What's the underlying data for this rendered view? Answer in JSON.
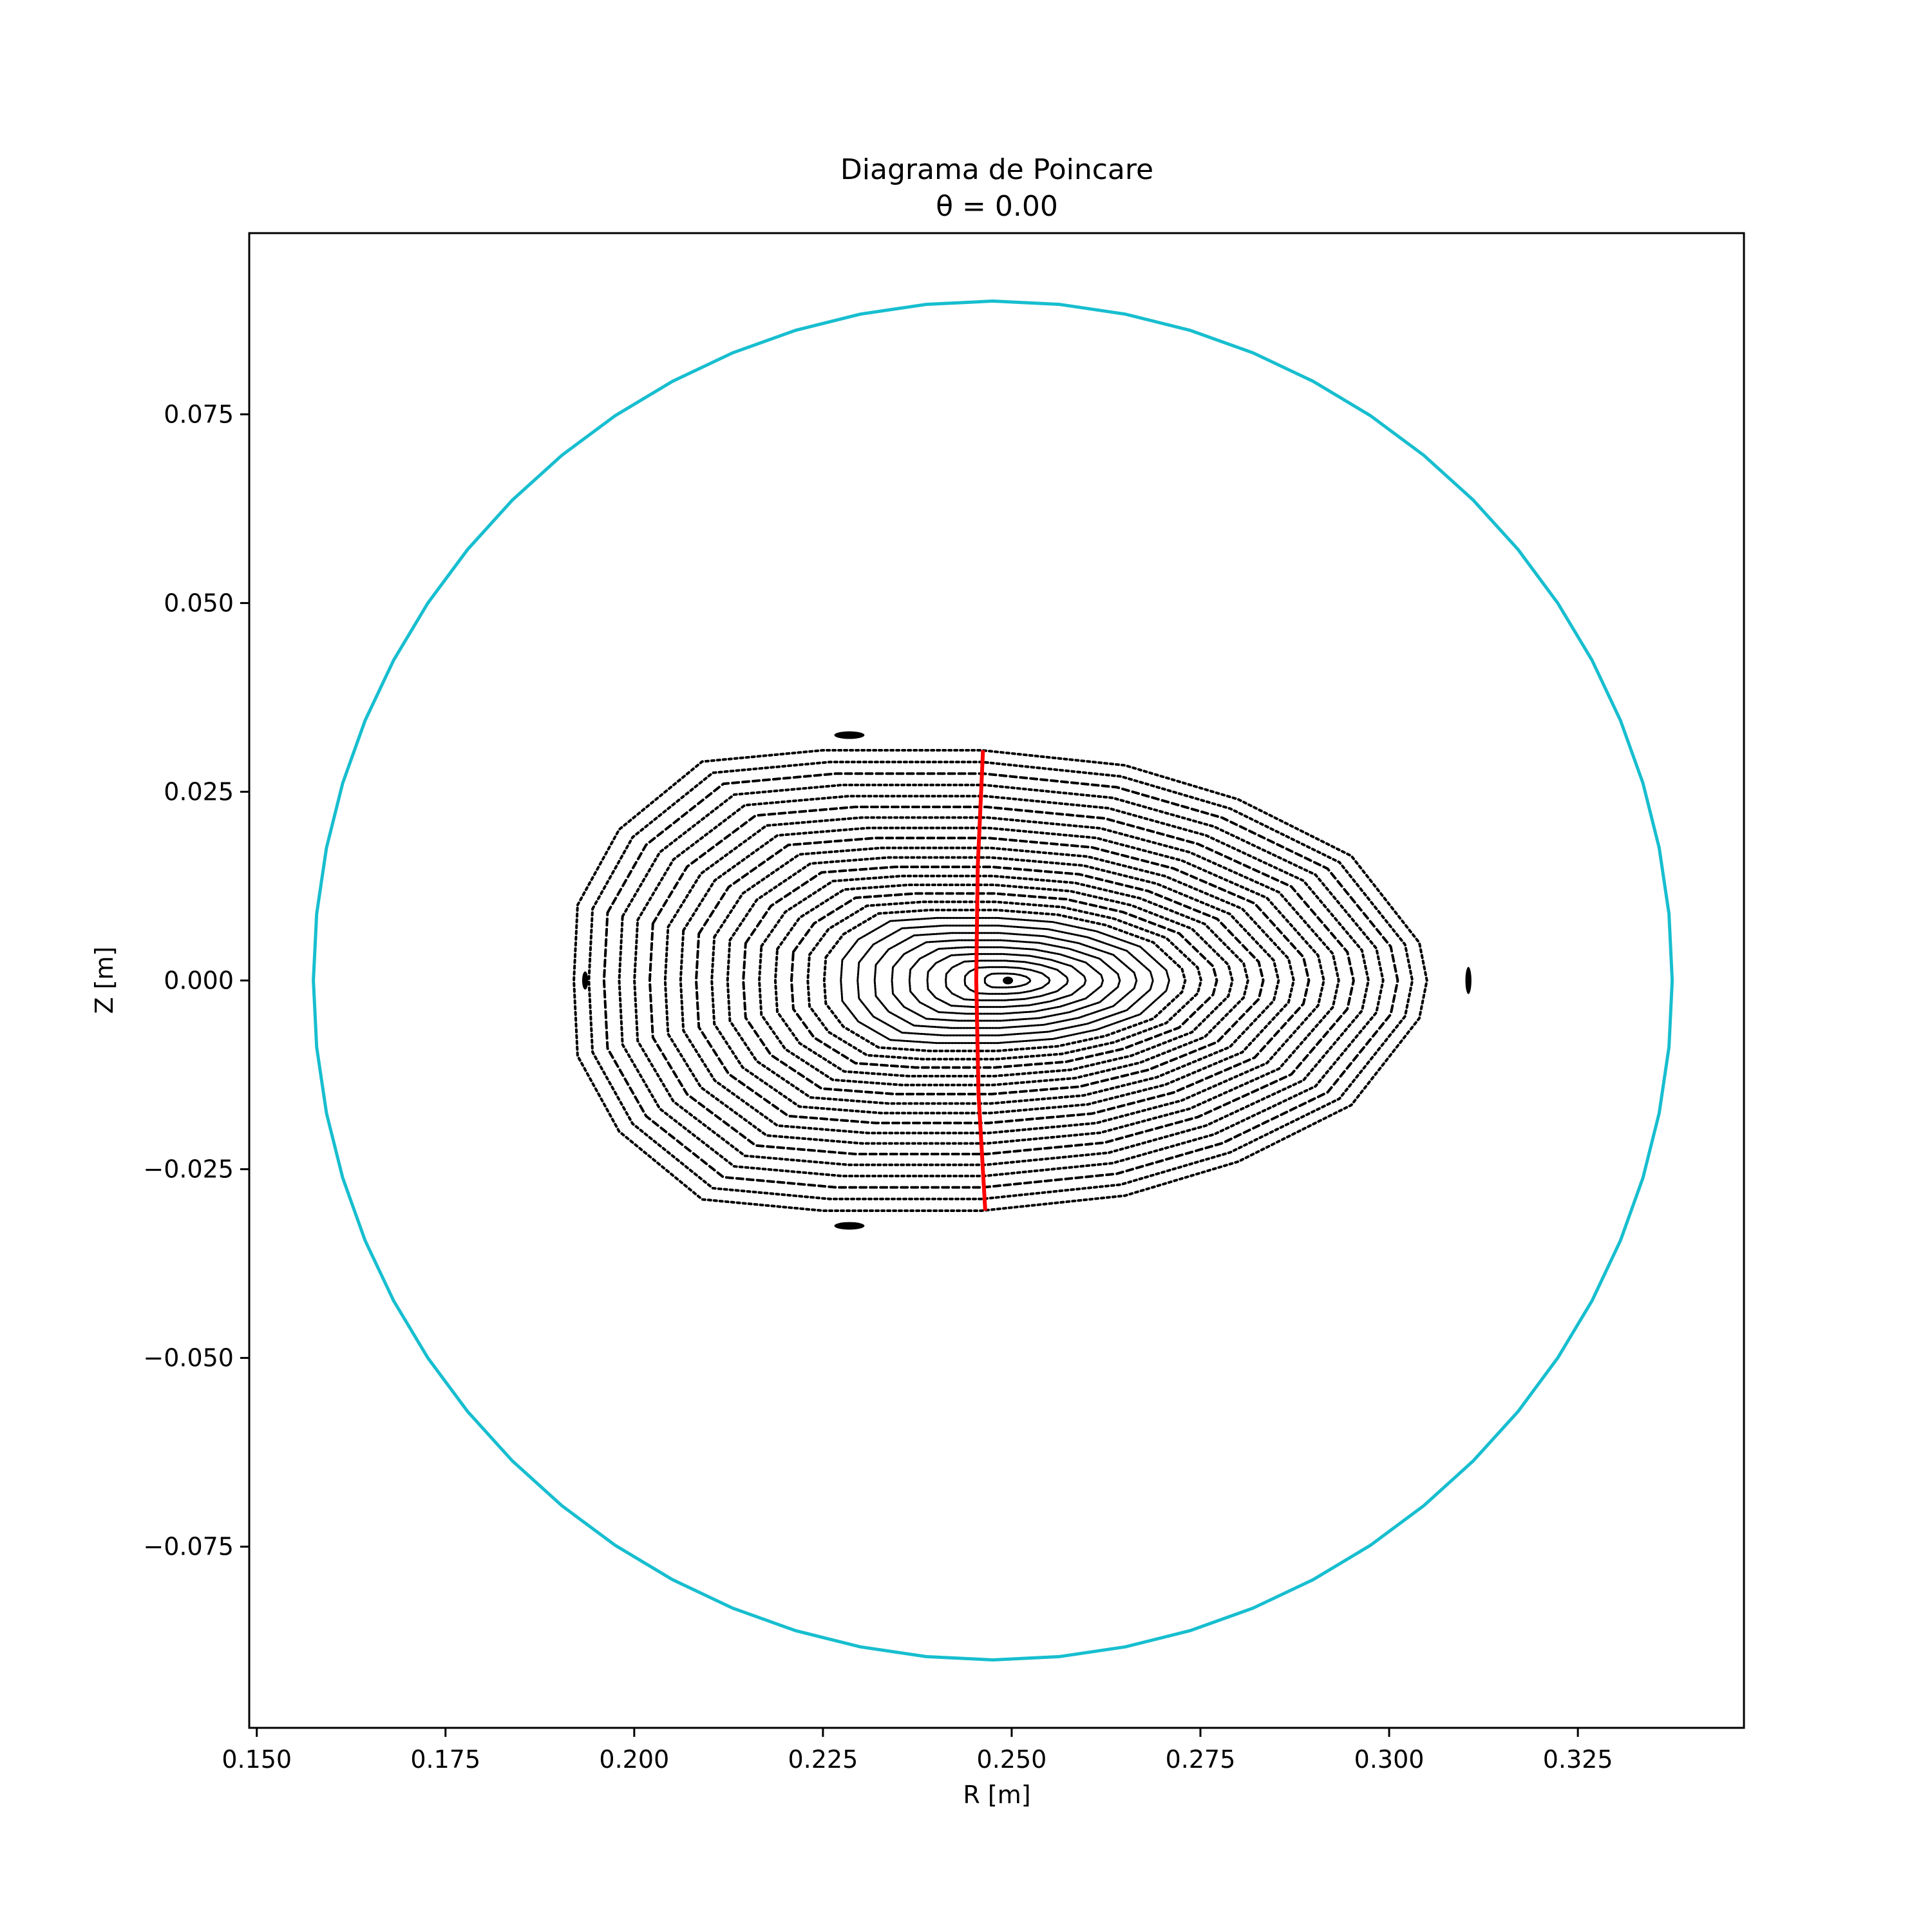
{
  "chart_data": {
    "type": "scatter",
    "title": "Diagrama de Poincare",
    "subtitle": "θ = 0.00",
    "xlabel": "R [m]",
    "ylabel": "Z [m]",
    "xlim": [
      0.149,
      0.347
    ],
    "ylim": [
      -0.099,
      0.099
    ],
    "x_ticks": [
      0.15,
      0.175,
      0.2,
      0.225,
      0.25,
      0.275,
      0.3,
      0.325
    ],
    "x_tick_labels": [
      "0.150",
      "0.175",
      "0.200",
      "0.225",
      "0.250",
      "0.275",
      "0.300",
      "0.325"
    ],
    "y_ticks": [
      0.075,
      0.05,
      0.025,
      0.0,
      -0.025,
      -0.05,
      -0.075
    ],
    "y_tick_labels": [
      "0.075",
      "0.050",
      "0.025",
      "0.000",
      "−0.025",
      "−0.050",
      "−0.075"
    ],
    "grid": false,
    "legend": "none",
    "wall": {
      "color": "#17becf",
      "center_r": 0.2475,
      "center_z": 0.0,
      "radius": 0.09,
      "segments": 64
    },
    "red_line": {
      "color": "#ff0000",
      "points": [
        [
          0.2462,
          0.0305
        ],
        [
          0.2455,
          0.015
        ],
        [
          0.2453,
          0.0
        ],
        [
          0.2456,
          -0.015
        ],
        [
          0.2465,
          -0.0305
        ]
      ]
    },
    "flux_surfaces": {
      "color": "#000000",
      "axis_r": 0.2495,
      "axis_z": 0.0,
      "outer_points": [
        [
          0.1925,
          0.01
        ],
        [
          0.198,
          0.02
        ],
        [
          0.209,
          0.029
        ],
        [
          0.225,
          0.0305
        ],
        [
          0.246,
          0.0305
        ],
        [
          0.265,
          0.0285
        ],
        [
          0.28,
          0.024
        ],
        [
          0.295,
          0.0165
        ],
        [
          0.304,
          0.005
        ],
        [
          0.305,
          0.0
        ],
        [
          0.304,
          -0.005
        ],
        [
          0.295,
          -0.0165
        ],
        [
          0.28,
          -0.024
        ],
        [
          0.265,
          -0.0285
        ],
        [
          0.246,
          -0.0305
        ],
        [
          0.225,
          -0.0305
        ],
        [
          0.209,
          -0.029
        ],
        [
          0.198,
          -0.02
        ],
        [
          0.1925,
          -0.01
        ],
        [
          0.192,
          0.0
        ]
      ]
    },
    "islands": [
      {
        "r": 0.2285,
        "z": 0.0325,
        "w": 0.002,
        "h": 0.0005
      },
      {
        "r": 0.2285,
        "z": -0.0325,
        "w": 0.002,
        "h": 0.0005
      },
      {
        "r": 0.1935,
        "z": 0.0,
        "w": 0.0004,
        "h": 0.0012
      },
      {
        "r": 0.3105,
        "z": 0.0,
        "w": 0.0004,
        "h": 0.0018
      }
    ]
  }
}
